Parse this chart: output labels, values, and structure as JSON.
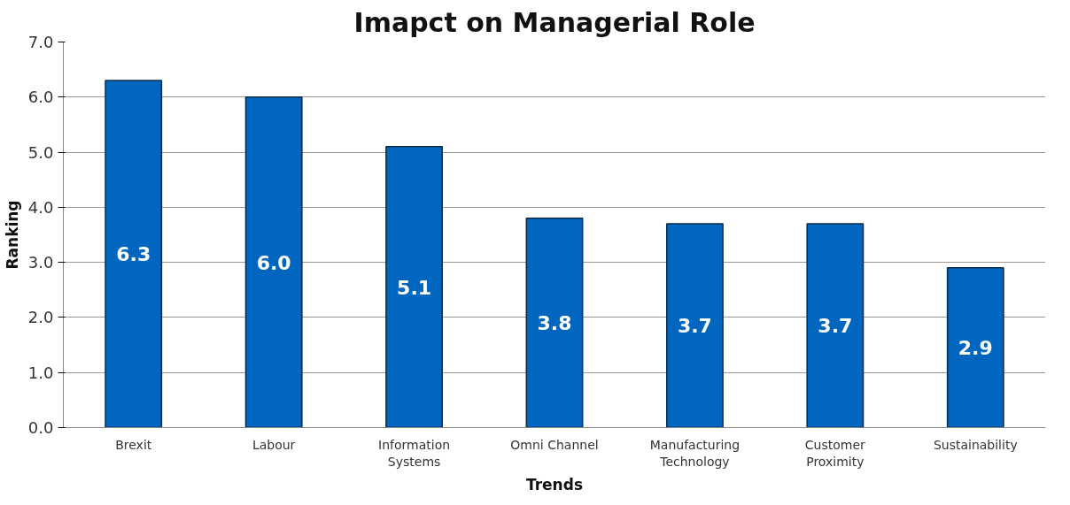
{
  "chart_data": {
    "type": "bar",
    "title": "Imapct on Managerial Role",
    "xlabel": "Trends",
    "ylabel": "Ranking",
    "categories": [
      "Brexit",
      "Labour",
      "Information\nSystems",
      "Omni Channel",
      "Manufacturing\nTechnology",
      "Customer\nProximity",
      "Sustainability"
    ],
    "values": [
      6.3,
      6.0,
      5.1,
      3.8,
      3.7,
      3.7,
      2.9
    ],
    "color": "#0066c0",
    "ylim": [
      0,
      7
    ],
    "yticks": [
      {
        "value": 0,
        "label": "0.0"
      },
      {
        "value": 1,
        "label": "1.0"
      },
      {
        "value": 2,
        "label": "2.0"
      },
      {
        "value": 3,
        "label": "3.0"
      },
      {
        "value": 4,
        "label": "4.0"
      },
      {
        "value": 5,
        "label": "5.0"
      },
      {
        "value": 6,
        "label": "6.0"
      },
      {
        "value": 7,
        "label": "7.0"
      }
    ],
    "value_labels": [
      "6.3",
      "6.0",
      "5.1",
      "3.8",
      "3.7",
      "3.7",
      "2.9"
    ],
    "grid": "y"
  }
}
